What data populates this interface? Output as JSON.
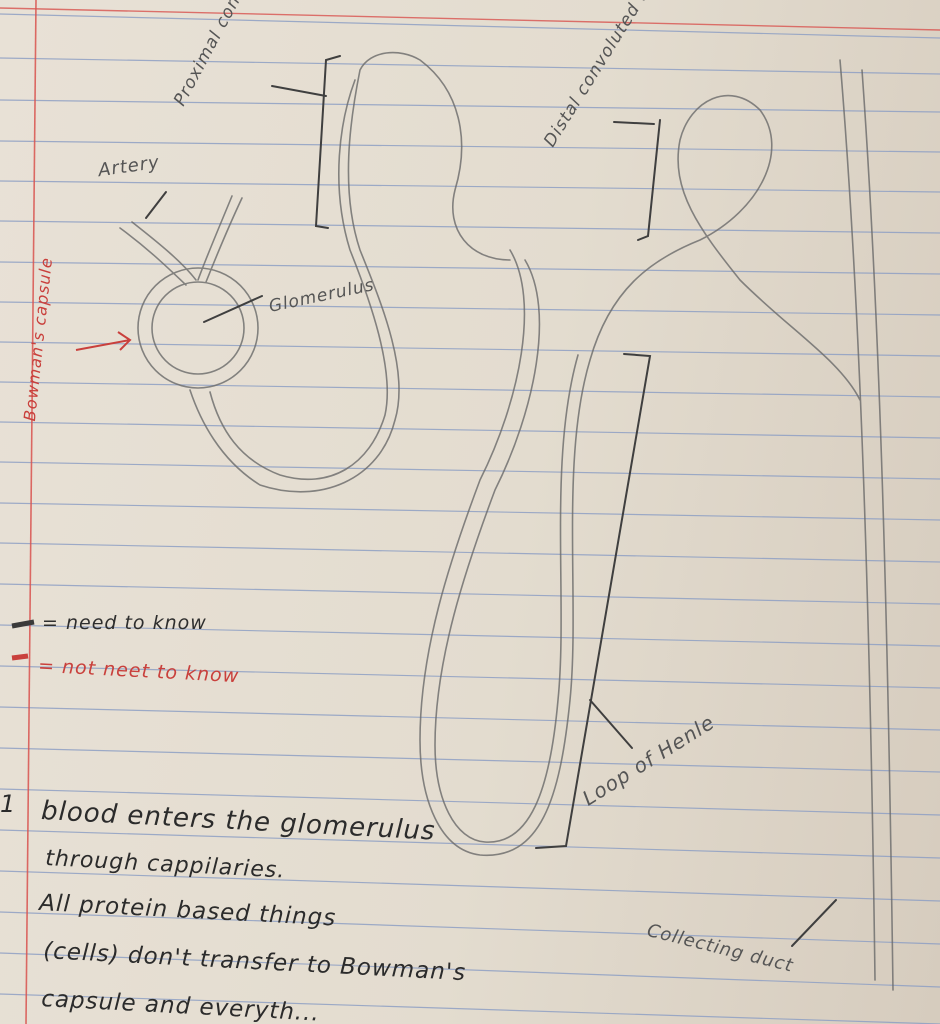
{
  "labels": {
    "proximal": "Proximal convoluted tubule",
    "distal": "Distal convoluted tubule",
    "artery": "Artery",
    "bowmans": "Bowman's capsule",
    "glomerulus": "Glomerulus",
    "loop": "Loop of Henle",
    "collecting": "Collecting duct"
  },
  "key": {
    "need": "= need to know",
    "not_need": "= not neet to know"
  },
  "notes": {
    "number": "1",
    "line1": "blood enters the glomerulus",
    "line2": "through cappilaries.",
    "line3": "All protein based things",
    "line4": "(cells) don't transfer to Bowman's",
    "line5": "capsule and everyth..."
  },
  "colors": {
    "paper": "#e6dfd3",
    "rule_blue": "#8fa0c4",
    "margin_red": "#d9534f",
    "pencil": "#5a5a5a",
    "ink_red": "#c9403c"
  }
}
